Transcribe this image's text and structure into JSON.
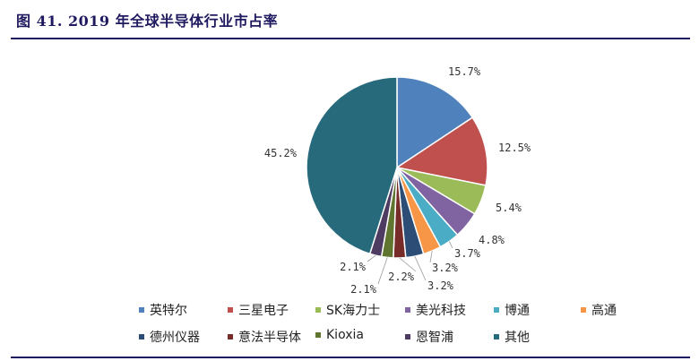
{
  "header": {
    "title": "图 41. 2019 年全球半导体行业市占率"
  },
  "chart_data": {
    "type": "pie",
    "title": "图 41. 2019 年全球半导体行业市占率",
    "slices": [
      {
        "label": "英特尔",
        "value": 15.7,
        "display": "15.7%",
        "color": "#4f81bd"
      },
      {
        "label": "三星电子",
        "value": 12.5,
        "display": "12.5%",
        "color": "#c0504d"
      },
      {
        "label": "SK海力士",
        "value": 5.4,
        "display": "5.4%",
        "color": "#9bbb59"
      },
      {
        "label": "美光科技",
        "value": 4.8,
        "display": "4.8%",
        "color": "#8064a2"
      },
      {
        "label": "博通",
        "value": 3.7,
        "display": "3.7%",
        "color": "#4bacc6"
      },
      {
        "label": "高通",
        "value": 3.2,
        "display": "3.2%",
        "color": "#f79646"
      },
      {
        "label": "德州仪器",
        "value": 3.2,
        "display": "3.2%",
        "color": "#2c4d75"
      },
      {
        "label": "意法半导体",
        "value": 2.2,
        "display": "2.2%",
        "color": "#772c2a"
      },
      {
        "label": "Kioxia",
        "value": 2.1,
        "display": "2.1%",
        "color": "#5f7530"
      },
      {
        "label": "恩智浦",
        "value": 2.1,
        "display": "2.1%",
        "color": "#4d3b62"
      },
      {
        "label": "其他",
        "value": 45.2,
        "display": "45.2%",
        "color": "#276a7c"
      }
    ],
    "legend_position": "bottom"
  }
}
